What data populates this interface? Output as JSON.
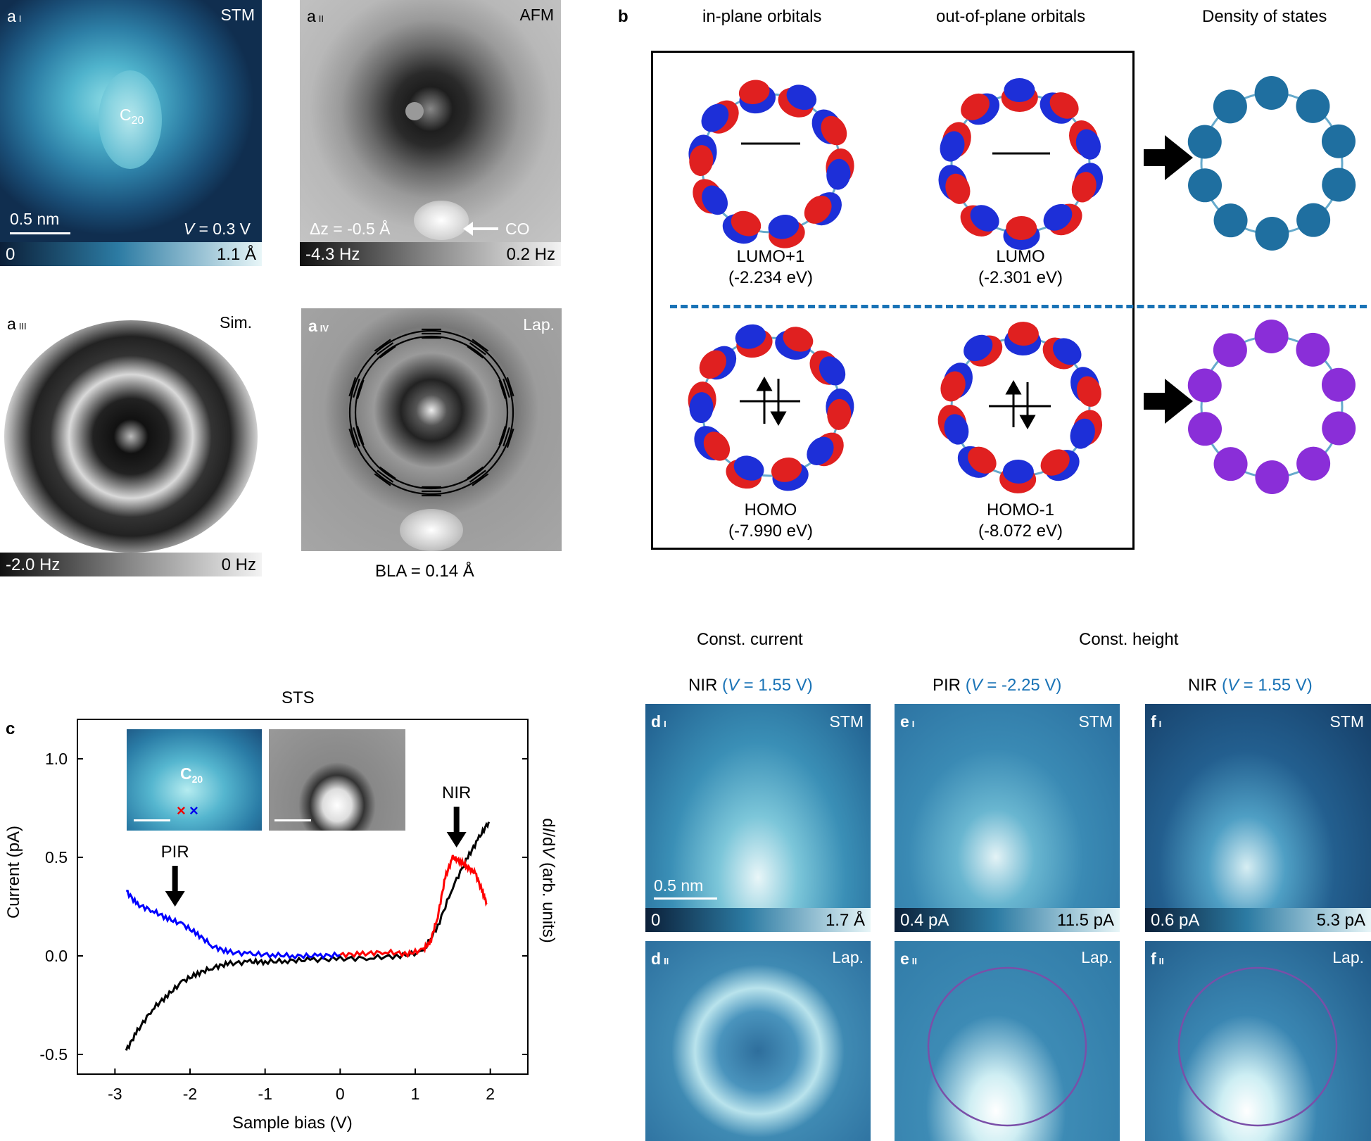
{
  "panel_a": {
    "i": {
      "letter": "a",
      "roman": "I",
      "mode": "STM",
      "molecule": "C",
      "molecule_sub": "20",
      "scalebar": "0.5 nm",
      "voltage_var": "V",
      "voltage_rest": " = 0.3 V",
      "cbar_min": "0",
      "cbar_max": "1.1 Å"
    },
    "ii": {
      "letter": "a",
      "roman": "II",
      "mode": "AFM",
      "dz": "Δz = -0.5 Å",
      "co": "CO",
      "cbar_min": "-4.3 Hz",
      "cbar_max": "0.2 Hz"
    },
    "iii": {
      "letter": "a",
      "roman": "III",
      "mode": "Sim.",
      "cbar_min": "-2.0 Hz",
      "cbar_max": "0 Hz"
    },
    "iv": {
      "letter": "a",
      "roman": "IV",
      "mode": "Lap.",
      "caption": "BLA = 0.14 Å"
    }
  },
  "panel_b": {
    "letter": "b",
    "col_in": "in-plane orbitals",
    "col_out": "out-of-plane orbitals",
    "col_dos": "Density of states",
    "orbitals": [
      {
        "name": "LUMO+1",
        "energy": "(-2.234 eV)"
      },
      {
        "name": "LUMO",
        "energy": "(-2.301 eV)"
      },
      {
        "name": "HOMO",
        "energy": "(-7.990 eV)"
      },
      {
        "name": "HOMO-1",
        "energy": "(-8.072 eV)"
      }
    ]
  },
  "panel_c": {
    "letter": "c",
    "title": "STS",
    "inset_molecule": "C",
    "inset_sub": "20"
  },
  "chart_data": {
    "type": "line",
    "title": "STS",
    "xlabel": "Sample bias (V)",
    "ylabel": "Current (pA)",
    "y2label_pre": "d",
    "y2label_i": "I",
    "y2label_mid": "/d",
    "y2label_v": "V",
    "y2label_post": " (arb. units)",
    "xlim": [
      -3.5,
      2.5
    ],
    "ylim": [
      -0.6,
      1.2
    ],
    "xticks": [
      "-3",
      "-2",
      "-1",
      "0",
      "1",
      "2"
    ],
    "yticks": [
      "-0.5",
      "0.0",
      "0.5",
      "1.0"
    ],
    "annotations": [
      {
        "text": "PIR",
        "x": -2.2
      },
      {
        "text": "NIR",
        "x": 1.55
      }
    ],
    "series": [
      {
        "name": "Current",
        "color": "#000000",
        "x": [
          -2.85,
          -2.7,
          -2.5,
          -2.3,
          -2.1,
          -1.9,
          -1.7,
          -1.5,
          -1.2,
          -1.0,
          -0.7,
          -0.4,
          0,
          0.4,
          0.8,
          1.1,
          1.3,
          1.5,
          1.7,
          1.85,
          1.98
        ],
        "y": [
          -0.48,
          -0.38,
          -0.27,
          -0.2,
          -0.13,
          -0.09,
          -0.06,
          -0.04,
          -0.03,
          -0.03,
          -0.025,
          -0.02,
          -0.015,
          -0.01,
          0.0,
          0.02,
          0.15,
          0.35,
          0.5,
          0.6,
          0.68
        ]
      },
      {
        "name": "dI/dV blue",
        "color": "#0000ff",
        "x": [
          -2.85,
          -2.7,
          -2.5,
          -2.3,
          -2.1,
          -1.9,
          -1.7,
          -1.5,
          -1.2,
          -0.9,
          -0.6,
          -0.3,
          0.0
        ],
        "y": [
          0.33,
          0.26,
          0.23,
          0.19,
          0.16,
          0.11,
          0.05,
          0.02,
          0.01,
          0.005,
          0.0,
          0.0,
          0.005
        ]
      },
      {
        "name": "dI/dV red",
        "color": "#ff0000",
        "x": [
          0.0,
          0.3,
          0.6,
          0.9,
          1.1,
          1.2,
          1.3,
          1.4,
          1.5,
          1.6,
          1.7,
          1.8,
          1.9,
          1.95
        ],
        "y": [
          0.005,
          0.01,
          0.02,
          0.01,
          0.03,
          0.07,
          0.2,
          0.4,
          0.5,
          0.48,
          0.45,
          0.42,
          0.32,
          0.27
        ]
      }
    ]
  },
  "panel_def": {
    "const_current": "Const. current",
    "const_height": "Const. height",
    "cols": [
      {
        "label": "NIR ",
        "v_var": "V",
        "v_rest": " = 1.55 V)",
        "v_open": "("
      },
      {
        "label": "PIR ",
        "v_var": "V",
        "v_rest": " = -2.25 V)",
        "v_open": "("
      },
      {
        "label": "NIR ",
        "v_var": "V",
        "v_rest": " = 1.55 V)",
        "v_open": "("
      }
    ],
    "d": {
      "letter": "d",
      "r1": "I",
      "r2": "II",
      "mode1": "STM",
      "mode2": "Lap.",
      "scalebar": "0.5 nm",
      "cbar_min": "0",
      "cbar_max": "1.7 Å"
    },
    "e": {
      "letter": "e",
      "r1": "I",
      "r2": "II",
      "mode1": "STM",
      "mode2": "Lap.",
      "cbar_min": "0.4 pA",
      "cbar_max": "11.5 pA"
    },
    "f": {
      "letter": "f",
      "r1": "I",
      "r2": "II",
      "mode1": "STM",
      "mode2": "Lap.",
      "cbar_min": "0.6 pA",
      "cbar_max": "5.3 pA"
    }
  }
}
